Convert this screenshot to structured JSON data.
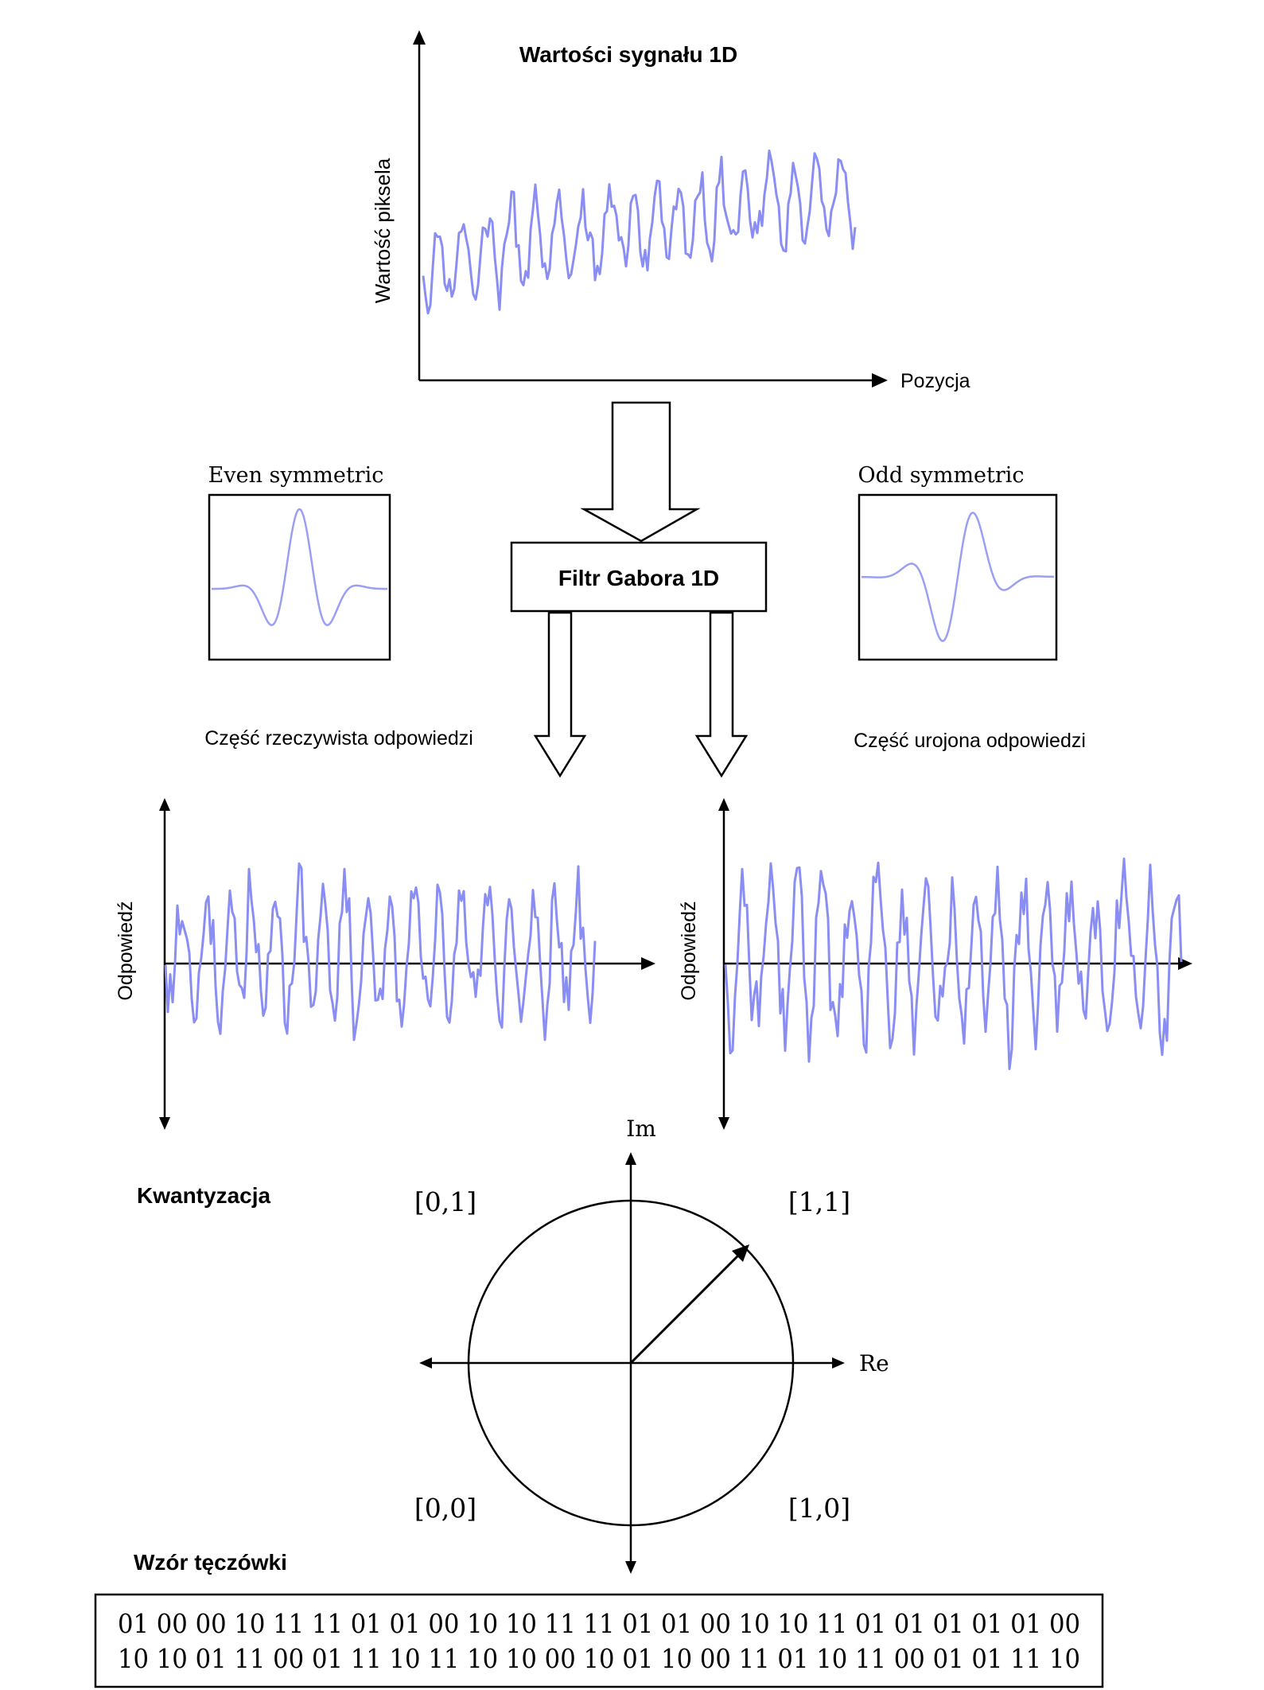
{
  "signal_plot": {
    "title": "Wartości sygnału 1D",
    "ylabel": "Wartość piksela",
    "xlabel": "Pozycja"
  },
  "filter": {
    "label": "Filtr Gabora 1D",
    "even_label": "Even symmetric",
    "odd_label": "Odd symmetric"
  },
  "responses": {
    "real_title": "Część rzeczywista odpowiedzi",
    "imag_title": "Część urojona odpowiedzi",
    "ylabel": "Odpowiedź"
  },
  "quantization": {
    "title": "Kwantyzacja",
    "im_label": "Im",
    "re_label": "Re",
    "q_01": "[0,1]",
    "q_11": "[1,1]",
    "q_00": "[0,0]",
    "q_10": "[1,0]"
  },
  "iris_code": {
    "title": "Wzór tęczówki",
    "row1": "01 00 00 10 11 11 01 01 00 10 10 11 11 01 01 00 10 10 11 01 01 01 01 01 00",
    "row2": "10 10 01 11 00 01 11 10 11 10 10 00 10 01 10 00 11 01 10 11 00 01 01 11 10"
  },
  "colors": {
    "signal": "#8a8ef2",
    "axes": "#000000",
    "background": "#ffffff"
  }
}
